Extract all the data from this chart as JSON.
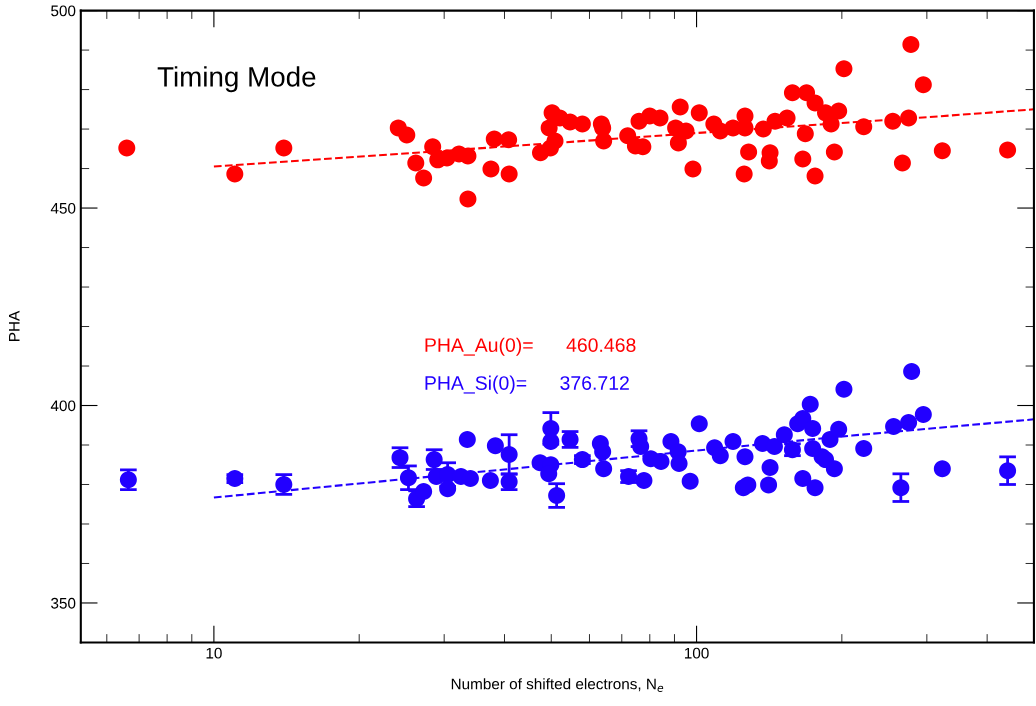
{
  "chart_data": {
    "type": "scatter",
    "xlabel": "Number of shifted electrons, N$_{e}$",
    "ylabel": "PHA",
    "annotations": [
      "Timing Mode",
      "PHA_Au(0)=      460.468",
      "PHA_Si(0)=      376.712"
    ],
    "log": "x",
    "xlim": [
      5.3,
      500
    ],
    "ylim": [
      340,
      500
    ],
    "xticks": [
      {
        "value": 6,
        "label": null
      },
      {
        "value": 7,
        "label": null
      },
      {
        "value": 8,
        "label": null
      },
      {
        "value": 9,
        "label": null
      },
      10,
      {
        "value": 20,
        "label": null
      },
      {
        "value": 30,
        "label": null
      },
      {
        "value": 40,
        "label": null
      },
      {
        "value": 50,
        "label": null
      },
      {
        "value": 60,
        "label": null
      },
      {
        "value": 70,
        "label": null
      },
      {
        "value": 80,
        "label": null
      },
      {
        "value": 90,
        "label": null
      },
      100,
      {
        "value": 200,
        "label": null
      },
      {
        "value": 300,
        "label": null
      },
      {
        "value": 400,
        "label": null
      }
    ],
    "yticks": [
      350,
      {
        "value": 360,
        "label": null
      },
      {
        "value": 370,
        "label": null
      },
      {
        "value": 380,
        "label": null
      },
      {
        "value": 390,
        "label": null
      },
      400,
      {
        "value": 410,
        "label": null
      },
      {
        "value": 420,
        "label": null
      },
      {
        "value": 430,
        "label": null
      },
      {
        "value": 440,
        "label": null
      },
      450,
      {
        "value": 460,
        "label": null
      },
      {
        "value": 470,
        "label": null
      },
      {
        "value": 480,
        "label": null
      },
      {
        "value": 490,
        "label": null
      },
      500
    ],
    "grid": false,
    "marker": "circle",
    "series": [
      {
        "color": "#ff0000",
        "x": [
          6.6,
          11.05,
          13.96,
          24.1,
          25.1,
          26.2,
          27.2,
          28.4,
          29.1,
          30.4,
          32.2,
          33.6,
          33.6,
          37.5,
          38.1,
          40.8,
          40.9,
          47.5,
          49.5,
          49.8,
          50.2,
          50.9,
          52.1,
          54.7,
          58.0,
          63.5,
          63.9,
          64.2,
          72.0,
          74.7,
          76.0,
          77.4,
          80.0,
          84.0,
          90.5,
          91.7,
          92.5,
          95.1,
          98.3,
          101.3,
          108.6,
          112.0,
          119.0,
          125.5,
          126.0,
          126.0,
          128.2,
          137.5,
          141.5,
          142.0,
          145.4,
          154,
          158,
          166,
          168,
          169,
          176,
          176,
          185,
          190,
          193,
          197,
          202,
          222,
          255,
          267,
          275,
          278,
          295,
          323,
          441
        ],
        "values": [
          465.2,
          458.6,
          465.2,
          470.3,
          468.5,
          461.4,
          457.6,
          465.5,
          462.2,
          462.7,
          463.7,
          463.2,
          452.3,
          459.9,
          467.5,
          467.3,
          458.6,
          464.0,
          470.3,
          465.2,
          474.1,
          467.0,
          472.8,
          471.8,
          471.3,
          471.3,
          470.3,
          467.0,
          468.3,
          465.7,
          472.0,
          465.5,
          473.3,
          472.8,
          470.3,
          466.5,
          475.6,
          469.5,
          459.9,
          474.1,
          471.3,
          469.5,
          470.3,
          458.6,
          473.3,
          470.3,
          464.2,
          470.0,
          461.9,
          464.0,
          472.0,
          472.8,
          479.2,
          462.4,
          468.8,
          479.2,
          476.6,
          458.1,
          474.1,
          471.3,
          464.2,
          474.6,
          485.3,
          470.6,
          472.0,
          461.4,
          472.8,
          491.4,
          481.2,
          464.5,
          464.7
        ]
      },
      {
        "color": "#2200ff",
        "x": [
          6.65,
          11.05,
          13.96,
          24.3,
          25.3,
          26.3,
          27.2,
          28.6,
          28.9,
          30.5,
          30.5,
          32.5,
          33.5,
          34.0,
          37.4,
          38.3,
          40.9,
          40.9,
          47.4,
          49.9,
          49.9,
          49.9,
          49.4,
          51.3,
          54.7,
          58.0,
          63.2,
          63.9,
          64.2,
          72.3,
          76.0,
          76.6,
          77.8,
          80.4,
          84.4,
          88.5,
          91.6,
          92.0,
          97.0,
          101.3,
          109,
          112,
          119,
          125,
          126,
          127.7,
          137,
          142,
          141,
          145,
          152,
          158,
          162,
          172,
          166,
          166,
          174,
          176,
          174,
          182,
          185,
          189,
          197,
          193,
          202,
          222,
          256,
          265,
          275,
          279,
          295,
          323,
          441
        ],
        "values": [
          381.2,
          381.5,
          380.0,
          386.8,
          381.7,
          376.4,
          378.2,
          386.3,
          382.0,
          382.5,
          378.9,
          382.0,
          391.4,
          381.5,
          381.0,
          389.8,
          387.6,
          380.7,
          385.5,
          394.2,
          390.9,
          385.0,
          382.7,
          377.2,
          391.4,
          386.3,
          390.4,
          388.3,
          384.0,
          382.0,
          391.6,
          389.6,
          381.0,
          386.5,
          385.8,
          390.9,
          388.3,
          385.3,
          380.8,
          395.4,
          389.3,
          387.3,
          390.9,
          379.2,
          387.0,
          379.9,
          390.4,
          384.3,
          379.9,
          389.6,
          392.6,
          388.8,
          395.4,
          400.3,
          396.7,
          381.5,
          394.2,
          379.2,
          389.1,
          387.0,
          386.3,
          391.4,
          394.0,
          384.0,
          404.1,
          389.1,
          394.7,
          379.2,
          395.7,
          408.6,
          397.7,
          384.0,
          383.5
        ],
        "errors": [
          2.5,
          1,
          2.5,
          2.5,
          3,
          2,
          null,
          2.5,
          null,
          3,
          null,
          null,
          null,
          null,
          null,
          null,
          5,
          2,
          null,
          4,
          null,
          null,
          null,
          3,
          2,
          1,
          null,
          null,
          null,
          1.5,
          2,
          null,
          null,
          null,
          null,
          null,
          null,
          null,
          null,
          null,
          null,
          null,
          null,
          null,
          null,
          null,
          null,
          null,
          null,
          null,
          null,
          1.5,
          null,
          null,
          null,
          null,
          null,
          null,
          null,
          null,
          null,
          null,
          null,
          null,
          null,
          null,
          null,
          3.5,
          null,
          null,
          null,
          null,
          3.5
        ]
      },
      {
        "type": "line",
        "line_style": "dashed",
        "marker": "none",
        "color": "#ff0000",
        "x": [
          10,
          30,
          100,
          300,
          500
        ],
        "values": [
          460.5,
          464.5,
          469.0,
          473.0,
          475.0
        ]
      },
      {
        "type": "line",
        "line_style": "dashed",
        "marker": "none",
        "color": "#2200ff",
        "x": [
          10,
          40,
          100,
          210,
          500
        ],
        "values": [
          376.7,
          383.8,
          388.6,
          392.4,
          396.5
        ]
      }
    ]
  }
}
